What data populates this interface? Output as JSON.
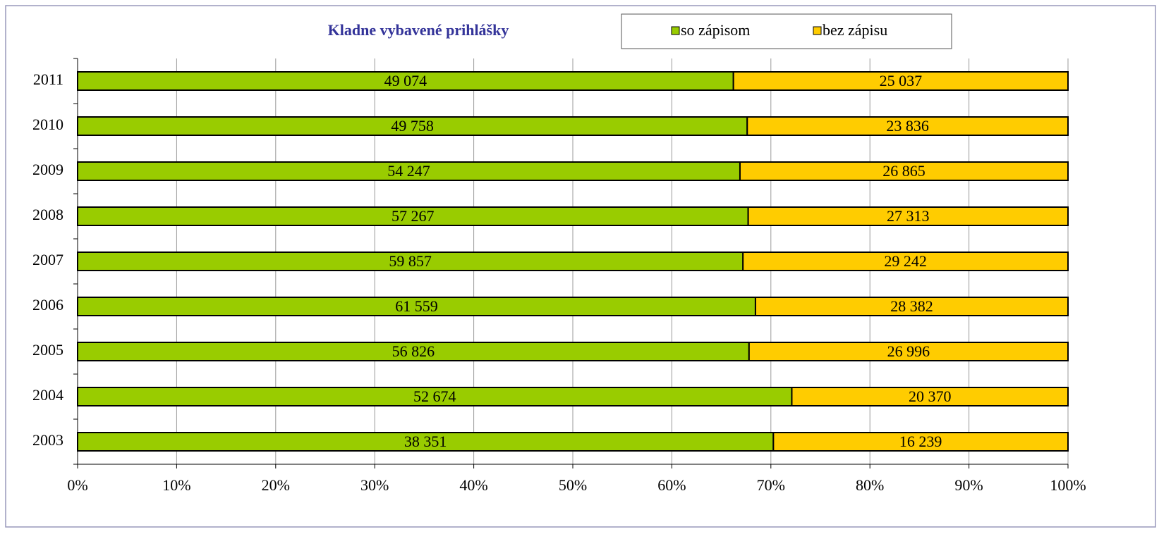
{
  "chart_data": {
    "type": "bar",
    "orientation": "horizontal",
    "stacking": "percent",
    "title": "Kladne vybavené prihlášky",
    "categories": [
      "2011",
      "2010",
      "2009",
      "2008",
      "2007",
      "2006",
      "2005",
      "2004",
      "2003"
    ],
    "series": [
      {
        "name": "so zápisom",
        "color": "#99cc00",
        "values": [
          49074,
          49758,
          54247,
          57267,
          59857,
          61559,
          56826,
          52674,
          38351
        ],
        "value_labels": [
          "49 074",
          "49 758",
          "54 247",
          "57 267",
          "59 857",
          "61 559",
          "56 826",
          "52 674",
          "38 351"
        ]
      },
      {
        "name": "bez zápisu",
        "color": "#ffcc00",
        "values": [
          25037,
          23836,
          26865,
          27313,
          29242,
          28382,
          26996,
          20370,
          16239
        ],
        "value_labels": [
          "25 037",
          "23 836",
          "26 865",
          "27 313",
          "29 242",
          "28 382",
          "26 996",
          "20 370",
          "16 239"
        ]
      }
    ],
    "xlim": [
      0,
      100
    ],
    "xticks": [
      {
        "value": 0,
        "label": "0%"
      },
      {
        "value": 10,
        "label": "10%"
      },
      {
        "value": 20,
        "label": "20%"
      },
      {
        "value": 30,
        "label": "30%"
      },
      {
        "value": 40,
        "label": "40%"
      },
      {
        "value": 50,
        "label": "50%"
      },
      {
        "value": 60,
        "label": "60%"
      },
      {
        "value": 70,
        "label": "70%"
      },
      {
        "value": 80,
        "label": "80%"
      },
      {
        "value": 90,
        "label": "90%"
      },
      {
        "value": 100,
        "label": "100%"
      }
    ],
    "grid": true
  }
}
